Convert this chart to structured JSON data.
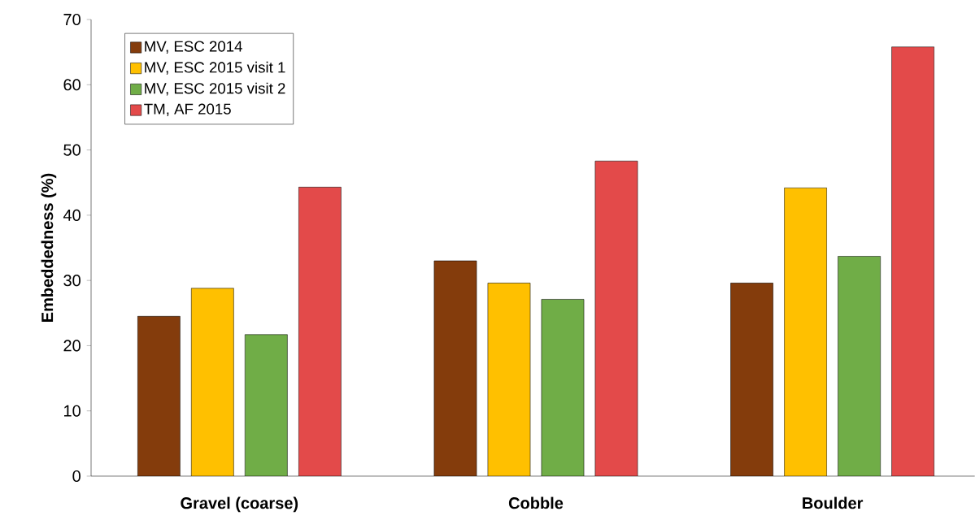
{
  "chart_data": {
    "type": "bar",
    "ylabel": "Embeddedness (%)",
    "categories": [
      "Gravel (coarse)",
      "Cobble",
      "Boulder"
    ],
    "series": [
      {
        "name": "MV, ESC 2014",
        "color": "#843c0c",
        "values": [
          24.5,
          33.0,
          29.6
        ]
      },
      {
        "name": "MV, ESC 2015 visit 1",
        "color": "#ffc000",
        "values": [
          28.8,
          29.6,
          44.2
        ]
      },
      {
        "name": "MV, ESC 2015 visit 2",
        "color": "#70ad47",
        "values": [
          21.7,
          27.1,
          33.7
        ]
      },
      {
        "name": "TM, AF 2015",
        "color": "#e34a4a",
        "values": [
          44.3,
          48.3,
          65.8
        ]
      }
    ],
    "ylim": [
      0,
      70
    ],
    "yticks": [
      0,
      10,
      20,
      30,
      40,
      50,
      60,
      70
    ],
    "legend": "top left",
    "grid": false
  }
}
